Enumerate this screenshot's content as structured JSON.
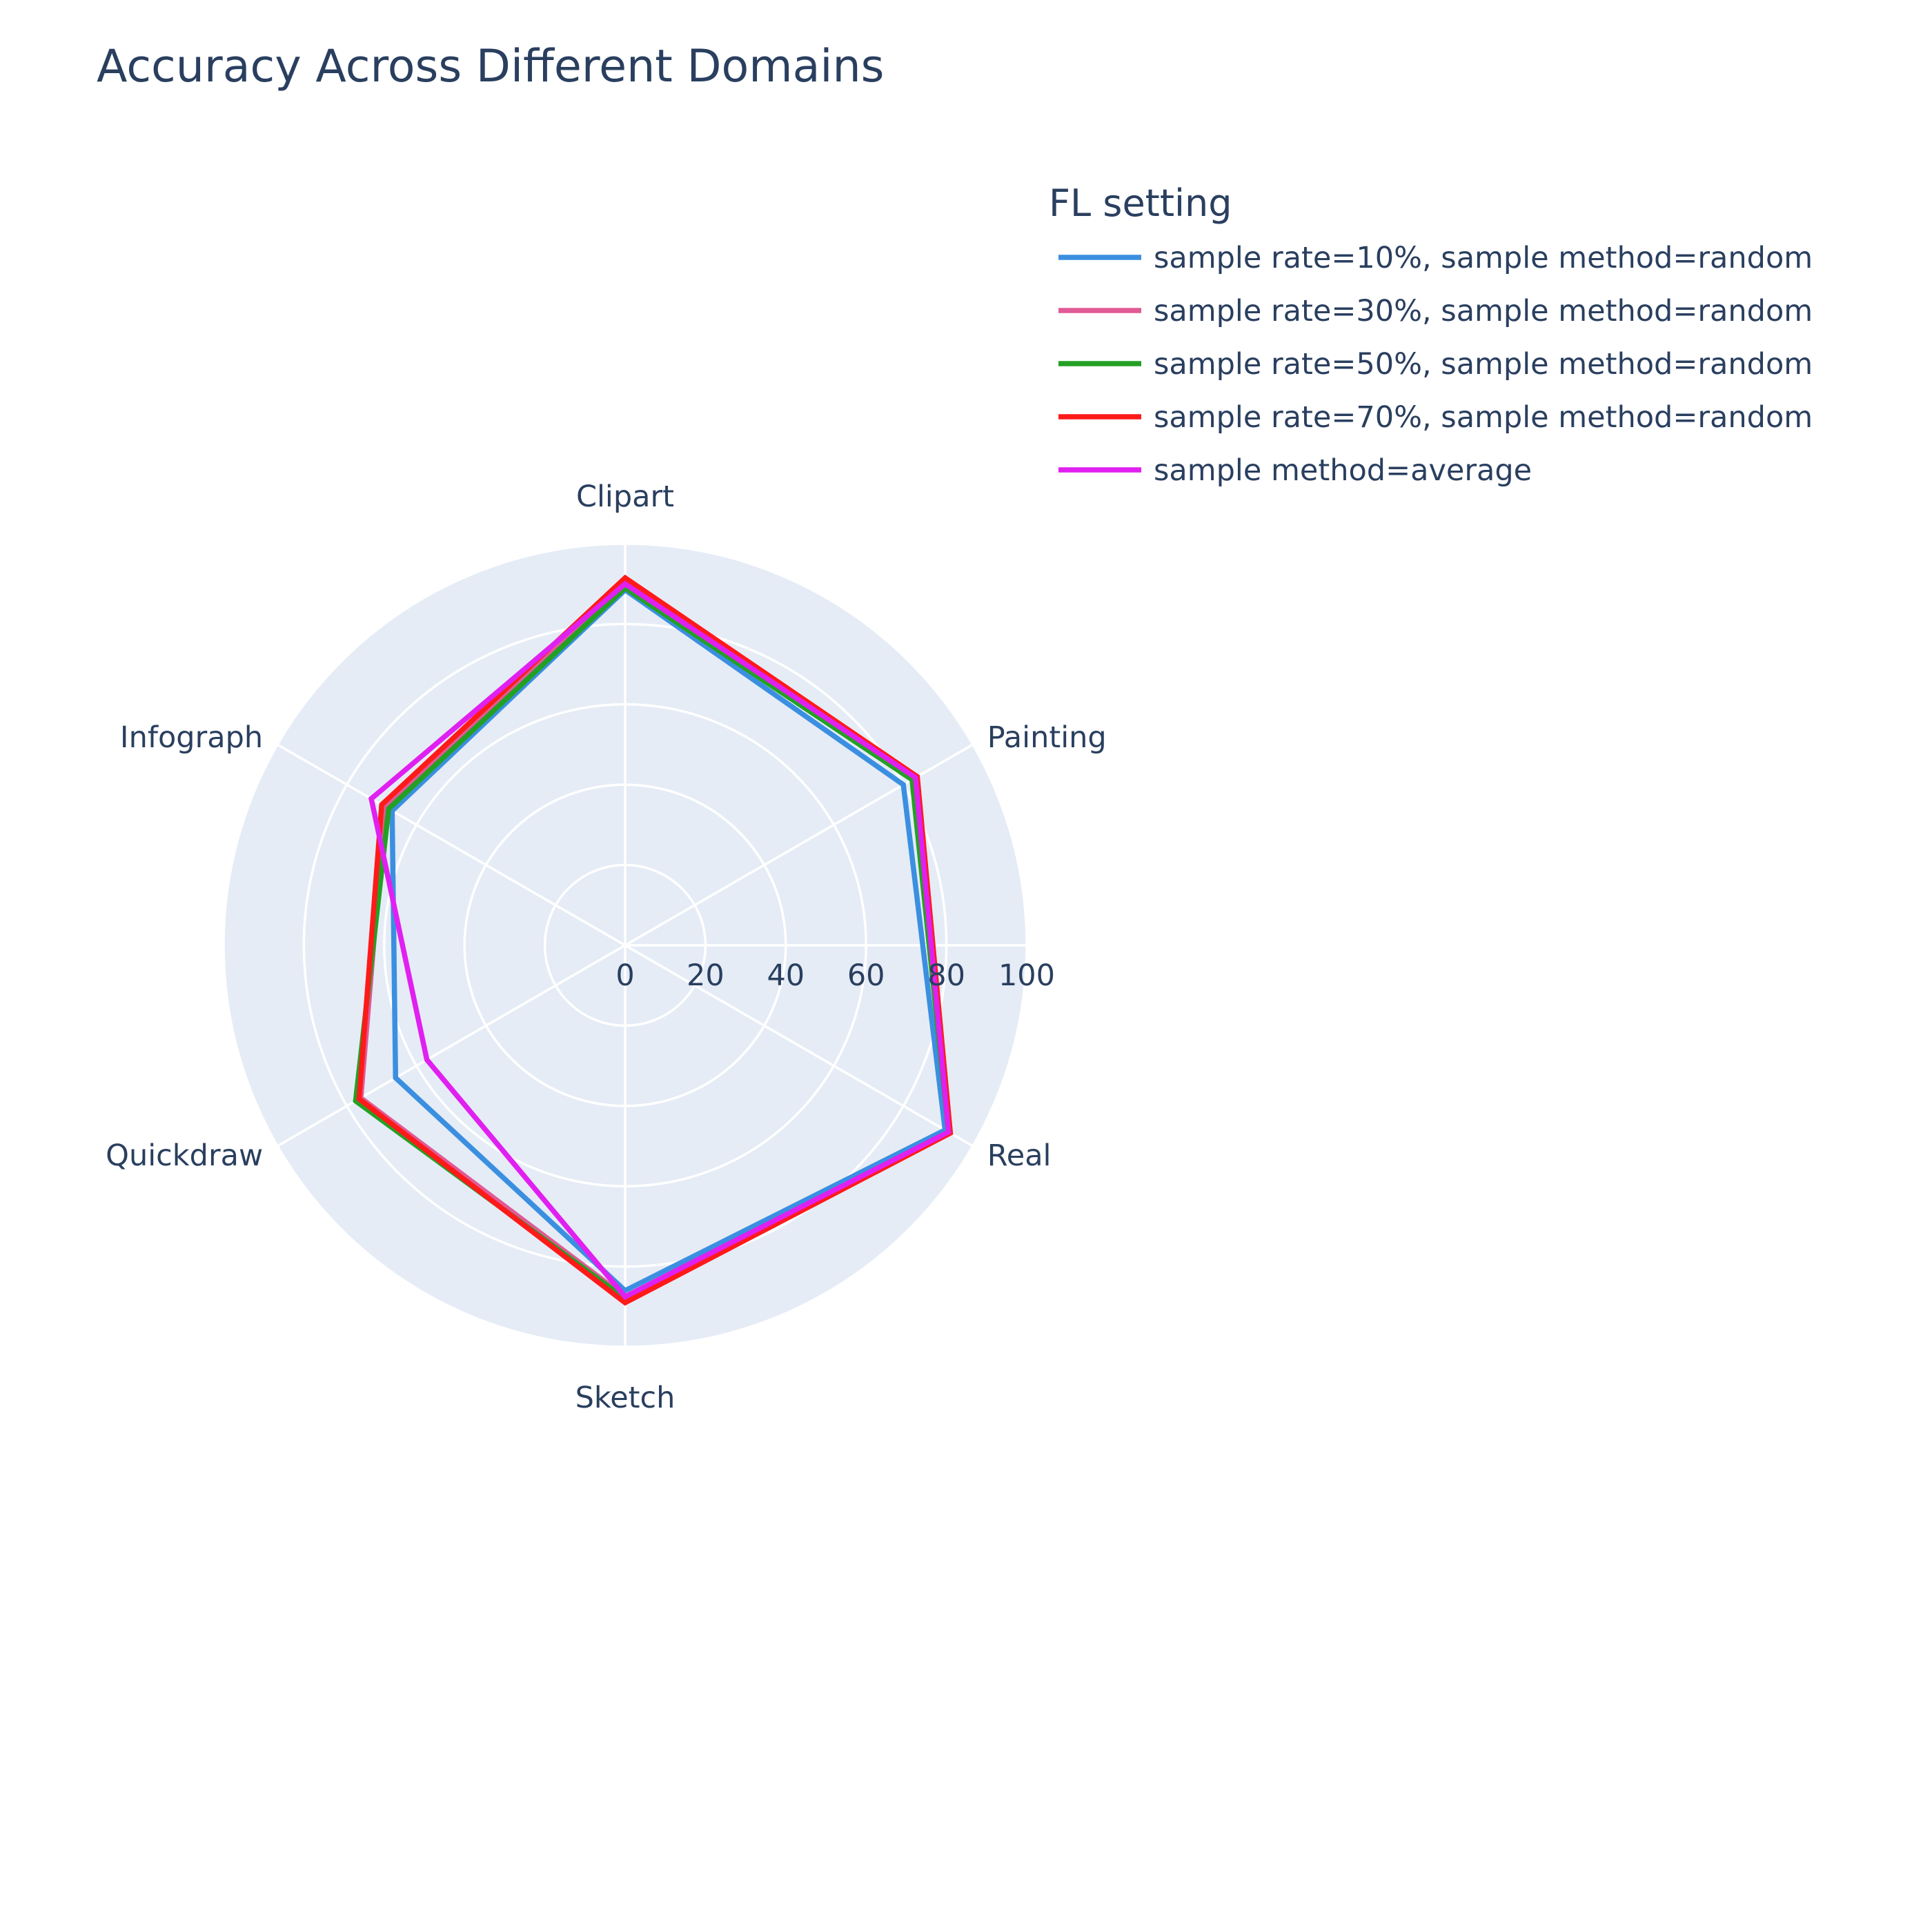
{
  "chart_data": {
    "type": "radar",
    "title": "Accuracy Across Different Domains",
    "categories": [
      "Clipart",
      "Painting",
      "Real",
      "Sketch",
      "Quickdraw",
      "Infograph"
    ],
    "radial_range": [
      0,
      100
    ],
    "radial_ticks": [
      "0",
      "20",
      "40",
      "60",
      "80",
      "100"
    ],
    "legend_title": "FL setting",
    "legend_position": "top-right",
    "grid": true,
    "background_color": "#e5ecf6",
    "series": [
      {
        "name": "sample rate=10%, sample method=random",
        "color": "#3b8fe0",
        "values": [
          88.5,
          80,
          92,
          86,
          66,
          67
        ]
      },
      {
        "name": "sample rate=30%, sample method=random",
        "color": "#e05a96",
        "values": [
          89.5,
          83,
          93.5,
          87.5,
          76,
          69
        ]
      },
      {
        "name": "sample rate=50%, sample method=random",
        "color": "#23a023",
        "values": [
          89,
          82.5,
          93,
          88,
          77.5,
          68
        ]
      },
      {
        "name": "sample rate=70%, sample method=random",
        "color": "#ff1a1a",
        "values": [
          91.5,
          84,
          93.5,
          89,
          76.5,
          70
        ]
      },
      {
        "name": "sample method=average",
        "color": "#e020f0",
        "values": [
          90,
          83.5,
          93,
          87.5,
          57,
          73
        ]
      }
    ]
  }
}
